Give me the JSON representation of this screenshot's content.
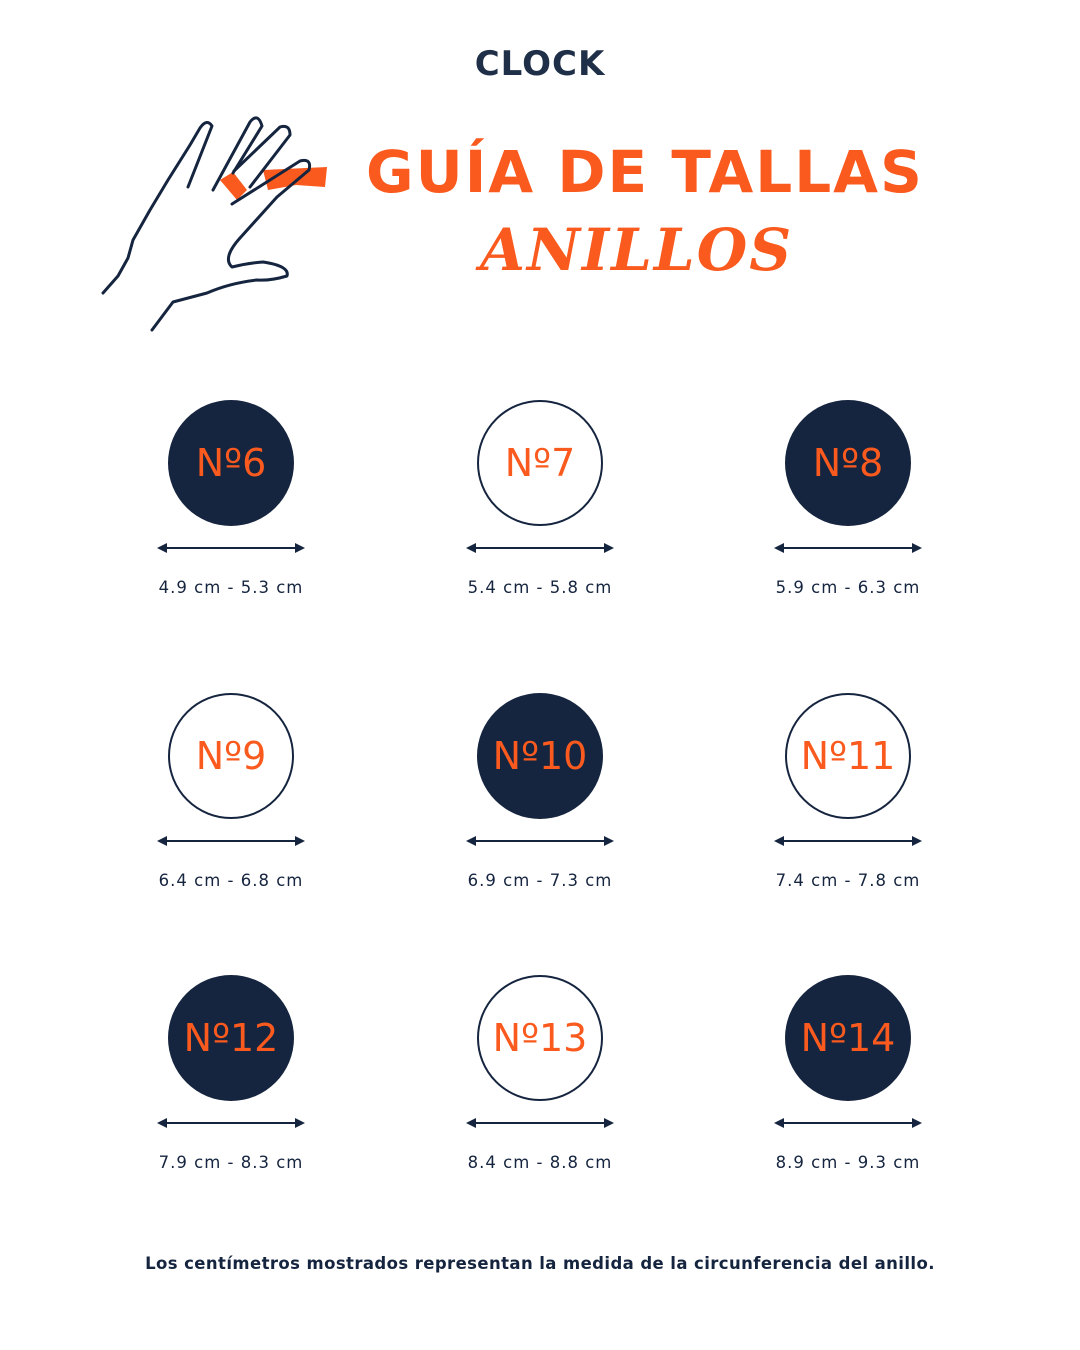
{
  "brand": {
    "logo_text": "CLOCK"
  },
  "header": {
    "title": "GUÍA DE TALLAS",
    "subtitle": "ANILLOS"
  },
  "colors": {
    "accent": "#fa5a1e",
    "navy": "#16253f"
  },
  "sizes": [
    {
      "label": "Nº6",
      "range": "4.9 cm - 5.3 cm",
      "style": "filled"
    },
    {
      "label": "Nº7",
      "range": "5.4 cm - 5.8 cm",
      "style": "outline"
    },
    {
      "label": "Nº8",
      "range": "5.9 cm - 6.3 cm",
      "style": "filled"
    },
    {
      "label": "Nº9",
      "range": "6.4 cm - 6.8 cm",
      "style": "outline"
    },
    {
      "label": "Nº10",
      "range": "6.9 cm - 7.3 cm",
      "style": "filled"
    },
    {
      "label": "Nº11",
      "range": "7.4 cm - 7.8 cm",
      "style": "outline"
    },
    {
      "label": "Nº12",
      "range": "7.9 cm - 8.3 cm",
      "style": "filled"
    },
    {
      "label": "Nº13",
      "range": "8.4 cm - 8.8 cm",
      "style": "outline"
    },
    {
      "label": "Nº14",
      "range": "8.9 cm - 9.3 cm",
      "style": "filled"
    }
  ],
  "footer": {
    "note": "Los centímetros mostrados representan la medida de la circunferencia del anillo."
  }
}
